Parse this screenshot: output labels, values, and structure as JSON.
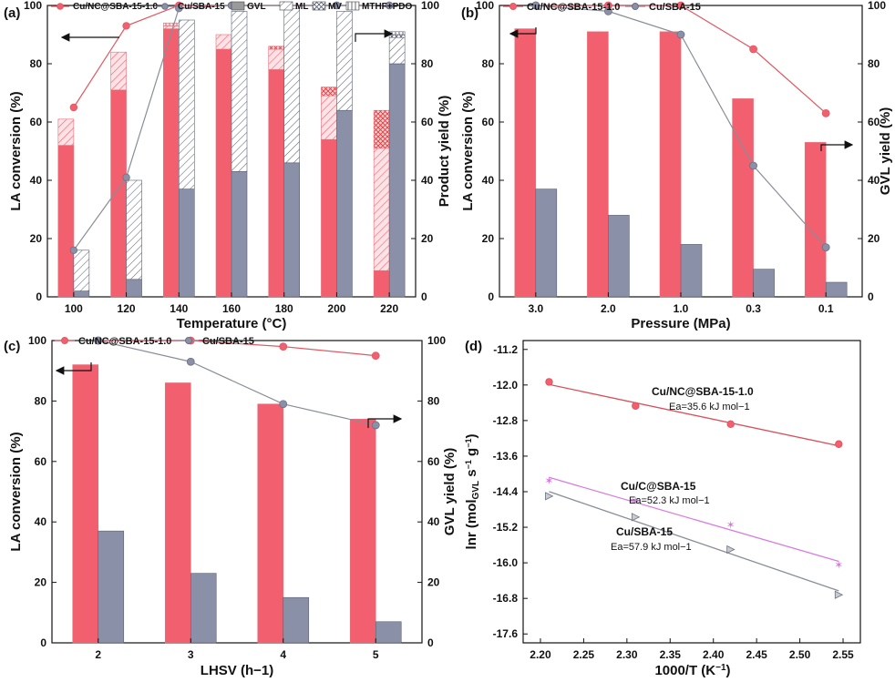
{
  "colors": {
    "red": "#f2606f",
    "gray": "#8a90a8",
    "line_red": "#e05863",
    "line_gray": "#8a8d99",
    "pink": "#d67de0",
    "mtf_red": "#e23a3a"
  },
  "chart_data": [
    {
      "id": "a",
      "panel_label": "(a)",
      "type": "bar",
      "xlabel": "Temperature (°C)",
      "ylabel": "LA conversion (%)",
      "y2label": "Product yield (%)",
      "ylim": [
        0,
        100
      ],
      "y2lim": [
        0,
        100
      ],
      "yticks": [
        "0",
        "20",
        "40",
        "60",
        "80",
        "100"
      ],
      "categories": [
        "100",
        "120",
        "140",
        "160",
        "180",
        "200",
        "220"
      ],
      "legend": [
        "Cu/NC@SBA-15-1.0",
        "Cu/SBA-15",
        "GVL",
        "ML",
        "MV",
        "MTHF+PDO"
      ],
      "series": [
        {
          "name": "Cu/NC@SBA-15-1.0",
          "GVL": [
            52,
            71,
            92,
            85,
            78,
            54,
            9
          ],
          "ML": [
            9,
            13,
            1,
            5,
            7,
            15,
            42
          ],
          "MV": [
            0,
            0,
            0,
            0,
            1,
            3,
            13
          ],
          "MTHF+PDO": [
            0,
            0,
            1,
            0,
            0,
            0,
            0
          ],
          "conversion": [
            65,
            93,
            100,
            100,
            100,
            100,
            100
          ]
        },
        {
          "name": "Cu/SBA-15",
          "GVL": [
            2,
            6,
            37,
            43,
            46,
            64,
            80
          ],
          "ML": [
            14,
            34,
            58,
            55,
            53,
            34,
            9
          ],
          "MV": [
            0,
            0,
            0,
            0,
            0,
            0,
            1
          ],
          "MTHF+PDO": [
            0,
            0,
            0,
            0,
            0,
            0,
            1
          ],
          "conversion": [
            16,
            41,
            99,
            100,
            100,
            100,
            100
          ]
        }
      ]
    },
    {
      "id": "b",
      "panel_label": "(b)",
      "type": "bar",
      "xlabel": "Pressure (MPa)",
      "ylabel": "LA conversion (%)",
      "y2label": "GVL yield (%)",
      "ylim": [
        0,
        100
      ],
      "y2lim": [
        0,
        100
      ],
      "yticks": [
        "0",
        "20",
        "40",
        "60",
        "80",
        "100"
      ],
      "categories": [
        "3.0",
        "2.0",
        "1.0",
        "0.3",
        "0.1"
      ],
      "legend": [
        "Cu/NC@SBA-15-1.0",
        "Cu/SBA-15"
      ],
      "series": [
        {
          "name": "Cu/NC@SBA-15-1.0",
          "yield": [
            92,
            91,
            91,
            68,
            53
          ],
          "conversion": [
            100,
            100,
            100,
            85,
            63
          ]
        },
        {
          "name": "Cu/SBA-15",
          "yield": [
            37,
            28,
            18,
            9.5,
            5
          ],
          "conversion": [
            100,
            98,
            90,
            45,
            17
          ]
        }
      ]
    },
    {
      "id": "c",
      "panel_label": "(c)",
      "type": "bar",
      "xlabel": "LHSV (h−1)",
      "ylabel": "LA conversion (%)",
      "y2label": "GVL yield (%)",
      "ylim": [
        0,
        100
      ],
      "y2lim": [
        0,
        100
      ],
      "yticks": [
        "0",
        "20",
        "40",
        "60",
        "80",
        "100"
      ],
      "categories": [
        "2",
        "3",
        "4",
        "5"
      ],
      "legend": [
        "Cu/NC@SBA-15-1.0",
        "Cu/SBA-15"
      ],
      "series": [
        {
          "name": "Cu/NC@SBA-15-1.0",
          "yield": [
            92,
            86,
            79,
            74
          ],
          "conversion": [
            100,
            100,
            98,
            95
          ]
        },
        {
          "name": "Cu/SBA-15",
          "yield": [
            37,
            23,
            15,
            7
          ],
          "conversion": [
            100,
            93,
            79,
            72
          ]
        }
      ]
    },
    {
      "id": "d",
      "panel_label": "(d)",
      "type": "scatter",
      "xlabel": "1000/T (K−1)",
      "ylabel": "lnr (molGVL s−1 g−1)",
      "xlim": [
        2.18,
        2.57
      ],
      "ylim": [
        -17.8,
        -11.0
      ],
      "xticks": [
        "2.20",
        "2.25",
        "2.30",
        "2.35",
        "2.40",
        "2.45",
        "2.50",
        "2.55"
      ],
      "yticks": [
        "-11.2",
        "-12.0",
        "-12.8",
        "-13.6",
        "-14.4",
        "-15.2",
        "-16.0",
        "-16.8",
        "-17.6"
      ],
      "series": [
        {
          "name": "Cu/NC@SBA-15-1.0",
          "Ea": "Ea=35.6 kJ mol−1",
          "x": [
            2.21,
            2.31,
            2.42,
            2.545
          ],
          "y": [
            -11.93,
            -12.47,
            -12.88,
            -13.33
          ]
        },
        {
          "name": "Cu/C@SBA-15",
          "Ea": "Ea=52.3 kJ mol−1",
          "x": [
            2.21,
            2.31,
            2.42,
            2.545
          ],
          "y": [
            -14.15,
            -14.6,
            -15.15,
            -16.05
          ]
        },
        {
          "name": "Cu/SBA-15",
          "Ea": "Ea=57.9 kJ mol−1",
          "x": [
            2.21,
            2.31,
            2.42,
            2.545
          ],
          "y": [
            -14.5,
            -14.97,
            -15.7,
            -16.72
          ]
        }
      ]
    }
  ]
}
